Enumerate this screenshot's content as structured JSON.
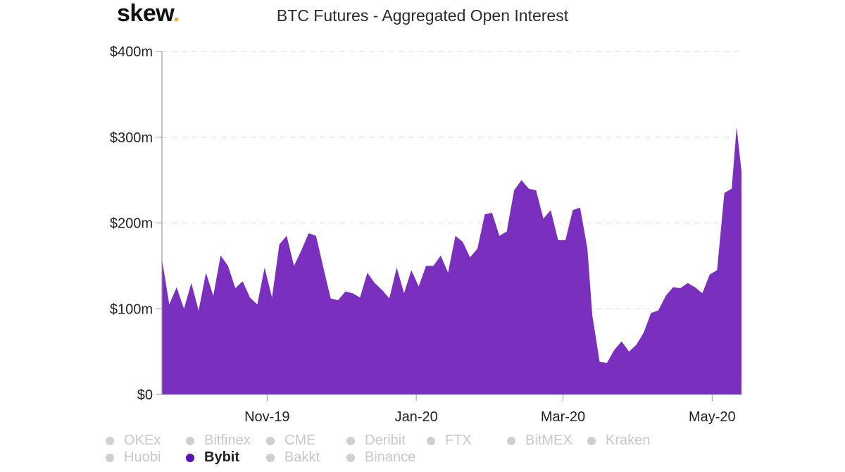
{
  "brand": {
    "name": "skew",
    "dot": "."
  },
  "chart_data": {
    "type": "area",
    "title": "BTC Futures - Aggregated Open Interest",
    "xlabel": "",
    "ylabel": "",
    "x_ticks": [
      "Nov-19",
      "Jan-20",
      "Mar-20",
      "May-20"
    ],
    "y_ticks": [
      "$0",
      "$100m",
      "$200m",
      "$300m",
      "$400m"
    ],
    "ylim": [
      0,
      400
    ],
    "x_range": [
      "2019-09-19",
      "2020-05-13"
    ],
    "grid": true,
    "series": [
      {
        "name": "Bybit",
        "color": "#7b2fbe",
        "unit": "millions USD",
        "x": [
          "2019-09-19",
          "2019-09-22",
          "2019-09-25",
          "2019-09-28",
          "2019-10-01",
          "2019-10-04",
          "2019-10-07",
          "2019-10-10",
          "2019-10-13",
          "2019-10-16",
          "2019-10-19",
          "2019-10-22",
          "2019-10-25",
          "2019-10-28",
          "2019-10-31",
          "2019-11-03",
          "2019-11-06",
          "2019-11-09",
          "2019-11-12",
          "2019-11-15",
          "2019-11-18",
          "2019-11-21",
          "2019-11-24",
          "2019-11-27",
          "2019-11-30",
          "2019-12-03",
          "2019-12-06",
          "2019-12-09",
          "2019-12-12",
          "2019-12-15",
          "2019-12-18",
          "2019-12-21",
          "2019-12-24",
          "2019-12-27",
          "2019-12-30",
          "2020-01-02",
          "2020-01-05",
          "2020-01-08",
          "2020-01-11",
          "2020-01-14",
          "2020-01-17",
          "2020-01-20",
          "2020-01-23",
          "2020-01-26",
          "2020-01-29",
          "2020-02-01",
          "2020-02-04",
          "2020-02-07",
          "2020-02-10",
          "2020-02-13",
          "2020-02-16",
          "2020-02-19",
          "2020-02-22",
          "2020-02-25",
          "2020-02-28",
          "2020-03-02",
          "2020-03-05",
          "2020-03-08",
          "2020-03-11",
          "2020-03-13",
          "2020-03-16",
          "2020-03-19",
          "2020-03-22",
          "2020-03-25",
          "2020-03-28",
          "2020-03-31",
          "2020-04-03",
          "2020-04-06",
          "2020-04-09",
          "2020-04-12",
          "2020-04-15",
          "2020-04-18",
          "2020-04-21",
          "2020-04-24",
          "2020-04-27",
          "2020-04-30",
          "2020-05-03",
          "2020-05-06",
          "2020-05-09",
          "2020-05-11",
          "2020-05-13"
        ],
        "values": [
          158,
          105,
          125,
          100,
          130,
          98,
          142,
          115,
          162,
          150,
          124,
          132,
          113,
          105,
          148,
          113,
          175,
          185,
          150,
          168,
          188,
          185,
          148,
          112,
          110,
          120,
          118,
          113,
          142,
          130,
          122,
          112,
          148,
          118,
          145,
          126,
          150,
          150,
          162,
          142,
          185,
          178,
          160,
          170,
          210,
          212,
          185,
          190,
          238,
          250,
          240,
          238,
          205,
          215,
          180,
          180,
          215,
          218,
          170,
          92,
          38,
          37,
          52,
          62,
          50,
          58,
          72,
          95,
          98,
          115,
          125,
          124,
          130,
          125,
          118,
          140,
          145,
          235,
          240,
          312,
          260
        ]
      }
    ]
  },
  "legend": [
    {
      "label": "OKEx",
      "active": false
    },
    {
      "label": "Bitfinex",
      "active": false
    },
    {
      "label": "CME",
      "active": false
    },
    {
      "label": "Deribit",
      "active": false
    },
    {
      "label": "FTX",
      "active": false
    },
    {
      "label": "BitMEX",
      "active": false
    },
    {
      "label": "Kraken",
      "active": false
    },
    {
      "label": "Huobi",
      "active": false
    },
    {
      "label": "Bybit",
      "active": true
    },
    {
      "label": "Bakkt",
      "active": false
    },
    {
      "label": "Binance",
      "active": false
    }
  ]
}
